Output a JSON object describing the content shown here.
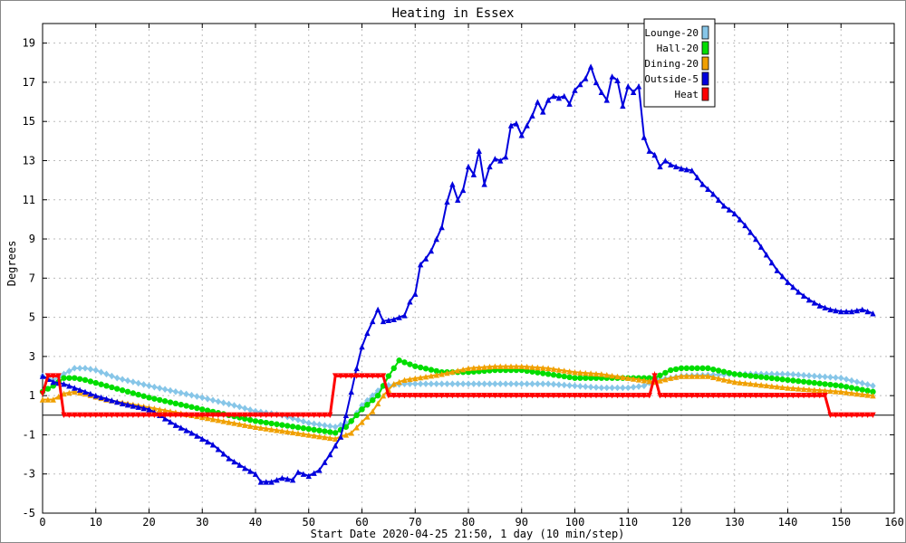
{
  "chart_data": {
    "type": "line",
    "title": "Heating in Essex",
    "xlabel": "Start Date 2020-04-25 21:50, 1 day (10 min/step)",
    "ylabel": "Degrees",
    "xlim": [
      0,
      160
    ],
    "ylim": [
      -5,
      20
    ],
    "x_ticks": [
      0,
      10,
      20,
      30,
      40,
      50,
      60,
      70,
      80,
      90,
      100,
      110,
      120,
      130,
      140,
      150,
      160
    ],
    "y_ticks": [
      -5,
      -3,
      -1,
      1,
      3,
      5,
      7,
      9,
      11,
      13,
      15,
      17,
      19
    ],
    "zero_line": 0,
    "grid": true,
    "legend_position": "top-right",
    "series": [
      {
        "name": "Lounge-20",
        "color": "#87c6e8",
        "marker": "diamond",
        "points": [
          [
            0,
            2.0
          ],
          [
            2,
            1.8
          ],
          [
            4,
            2.1
          ],
          [
            6,
            2.4
          ],
          [
            8,
            2.4
          ],
          [
            10,
            2.3
          ],
          [
            14,
            1.9
          ],
          [
            20,
            1.5
          ],
          [
            30,
            0.9
          ],
          [
            36,
            0.5
          ],
          [
            40,
            0.2
          ],
          [
            45,
            0.0
          ],
          [
            50,
            -0.4
          ],
          [
            55,
            -0.6
          ],
          [
            58,
            -0.3
          ],
          [
            60,
            0.5
          ],
          [
            62,
            1.0
          ],
          [
            64,
            1.5
          ],
          [
            68,
            1.6
          ],
          [
            75,
            1.6
          ],
          [
            85,
            1.6
          ],
          [
            90,
            1.6
          ],
          [
            95,
            1.6
          ],
          [
            100,
            1.5
          ],
          [
            105,
            1.4
          ],
          [
            110,
            1.4
          ],
          [
            113,
            1.5
          ],
          [
            115,
            1.8
          ],
          [
            118,
            1.9
          ],
          [
            120,
            2.0
          ],
          [
            130,
            2.1
          ],
          [
            140,
            2.1
          ],
          [
            150,
            1.9
          ],
          [
            156,
            1.5
          ]
        ]
      },
      {
        "name": "Hall-20",
        "color": "#00dd00",
        "marker": "circle",
        "points": [
          [
            0,
            1.2
          ],
          [
            2,
            1.5
          ],
          [
            4,
            1.9
          ],
          [
            6,
            1.9
          ],
          [
            8,
            1.8
          ],
          [
            12,
            1.5
          ],
          [
            20,
            0.9
          ],
          [
            30,
            0.3
          ],
          [
            40,
            -0.3
          ],
          [
            50,
            -0.7
          ],
          [
            55,
            -0.9
          ],
          [
            57,
            -0.6
          ],
          [
            60,
            0.3
          ],
          [
            63,
            1.0
          ],
          [
            65,
            2.0
          ],
          [
            67,
            2.8
          ],
          [
            70,
            2.5
          ],
          [
            75,
            2.2
          ],
          [
            80,
            2.2
          ],
          [
            85,
            2.3
          ],
          [
            90,
            2.3
          ],
          [
            95,
            2.1
          ],
          [
            100,
            1.9
          ],
          [
            105,
            1.9
          ],
          [
            110,
            1.9
          ],
          [
            115,
            1.9
          ],
          [
            118,
            2.3
          ],
          [
            120,
            2.4
          ],
          [
            125,
            2.4
          ],
          [
            130,
            2.1
          ],
          [
            140,
            1.8
          ],
          [
            150,
            1.5
          ],
          [
            156,
            1.2
          ]
        ]
      },
      {
        "name": "Dining-20",
        "color": "#f0a000",
        "marker": "triangle",
        "points": [
          [
            0,
            0.8
          ],
          [
            2,
            0.8
          ],
          [
            4,
            1.1
          ],
          [
            6,
            1.2
          ],
          [
            8,
            1.1
          ],
          [
            12,
            0.8
          ],
          [
            20,
            0.4
          ],
          [
            30,
            -0.1
          ],
          [
            40,
            -0.6
          ],
          [
            50,
            -1.0
          ],
          [
            55,
            -1.2
          ],
          [
            58,
            -0.9
          ],
          [
            62,
            0.2
          ],
          [
            64,
            1.0
          ],
          [
            66,
            1.6
          ],
          [
            68,
            1.8
          ],
          [
            75,
            2.1
          ],
          [
            80,
            2.4
          ],
          [
            85,
            2.5
          ],
          [
            90,
            2.5
          ],
          [
            95,
            2.4
          ],
          [
            100,
            2.2
          ],
          [
            105,
            2.1
          ],
          [
            110,
            1.9
          ],
          [
            115,
            1.7
          ],
          [
            118,
            1.9
          ],
          [
            120,
            2.0
          ],
          [
            125,
            2.0
          ],
          [
            130,
            1.7
          ],
          [
            140,
            1.4
          ],
          [
            150,
            1.2
          ],
          [
            156,
            1.0
          ]
        ]
      },
      {
        "name": "Outside-5",
        "color": "#0000dd",
        "marker": "triangle",
        "points": [
          [
            0,
            2.0
          ],
          [
            2,
            1.7
          ],
          [
            4,
            1.6
          ],
          [
            6,
            1.4
          ],
          [
            10,
            1.0
          ],
          [
            15,
            0.6
          ],
          [
            20,
            0.3
          ],
          [
            22,
            0.0
          ],
          [
            25,
            -0.5
          ],
          [
            28,
            -0.9
          ],
          [
            30,
            -1.2
          ],
          [
            32,
            -1.5
          ],
          [
            35,
            -2.2
          ],
          [
            38,
            -2.7
          ],
          [
            40,
            -3.0
          ],
          [
            41,
            -3.4
          ],
          [
            43,
            -3.4
          ],
          [
            45,
            -3.2
          ],
          [
            47,
            -3.3
          ],
          [
            48,
            -2.9
          ],
          [
            50,
            -3.1
          ],
          [
            52,
            -2.8
          ],
          [
            54,
            -2.0
          ],
          [
            56,
            -1.1
          ],
          [
            57,
            0.0
          ],
          [
            58,
            1.2
          ],
          [
            59,
            2.4
          ],
          [
            60,
            3.5
          ],
          [
            61,
            4.2
          ],
          [
            62,
            4.8
          ],
          [
            63,
            5.4
          ],
          [
            64,
            4.8
          ],
          [
            66,
            4.9
          ],
          [
            68,
            5.1
          ],
          [
            69,
            5.8
          ],
          [
            70,
            6.2
          ],
          [
            71,
            7.7
          ],
          [
            72,
            8.0
          ],
          [
            73,
            8.4
          ],
          [
            74,
            9.0
          ],
          [
            75,
            9.6
          ],
          [
            76,
            10.9
          ],
          [
            77,
            11.8
          ],
          [
            78,
            11.0
          ],
          [
            79,
            11.5
          ],
          [
            80,
            12.7
          ],
          [
            81,
            12.3
          ],
          [
            82,
            13.5
          ],
          [
            83,
            11.8
          ],
          [
            84,
            12.7
          ],
          [
            85,
            13.1
          ],
          [
            86,
            13.0
          ],
          [
            87,
            13.2
          ],
          [
            88,
            14.8
          ],
          [
            89,
            14.9
          ],
          [
            90,
            14.3
          ],
          [
            91,
            14.8
          ],
          [
            92,
            15.3
          ],
          [
            93,
            16.0
          ],
          [
            94,
            15.5
          ],
          [
            95,
            16.1
          ],
          [
            96,
            16.3
          ],
          [
            97,
            16.2
          ],
          [
            98,
            16.3
          ],
          [
            99,
            15.9
          ],
          [
            100,
            16.6
          ],
          [
            101,
            16.9
          ],
          [
            102,
            17.2
          ],
          [
            103,
            17.8
          ],
          [
            104,
            17.0
          ],
          [
            105,
            16.5
          ],
          [
            106,
            16.1
          ],
          [
            107,
            17.3
          ],
          [
            108,
            17.1
          ],
          [
            109,
            15.8
          ],
          [
            110,
            16.8
          ],
          [
            111,
            16.5
          ],
          [
            112,
            16.8
          ],
          [
            113,
            14.2
          ],
          [
            114,
            13.5
          ],
          [
            115,
            13.3
          ],
          [
            116,
            12.7
          ],
          [
            117,
            13.0
          ],
          [
            118,
            12.8
          ],
          [
            119,
            12.7
          ],
          [
            120,
            12.6
          ],
          [
            122,
            12.5
          ],
          [
            124,
            11.8
          ],
          [
            126,
            11.3
          ],
          [
            128,
            10.7
          ],
          [
            130,
            10.3
          ],
          [
            132,
            9.7
          ],
          [
            134,
            9.0
          ],
          [
            136,
            8.2
          ],
          [
            138,
            7.4
          ],
          [
            140,
            6.8
          ],
          [
            142,
            6.3
          ],
          [
            144,
            5.9
          ],
          [
            146,
            5.6
          ],
          [
            148,
            5.4
          ],
          [
            150,
            5.3
          ],
          [
            152,
            5.3
          ],
          [
            154,
            5.4
          ],
          [
            156,
            5.2
          ]
        ]
      },
      {
        "name": "Heat",
        "color": "#ff0000",
        "marker": "triangle-down",
        "points": [
          [
            0,
            1.1
          ],
          [
            1,
            2.0
          ],
          [
            3,
            2.0
          ],
          [
            4,
            0.0
          ],
          [
            54,
            0.0
          ],
          [
            55,
            2.0
          ],
          [
            64,
            2.0
          ],
          [
            65,
            1.0
          ],
          [
            114,
            1.0
          ],
          [
            115,
            2.0
          ],
          [
            116,
            1.0
          ],
          [
            147,
            1.0
          ],
          [
            148,
            0.0
          ],
          [
            156,
            0.0
          ]
        ]
      }
    ]
  }
}
